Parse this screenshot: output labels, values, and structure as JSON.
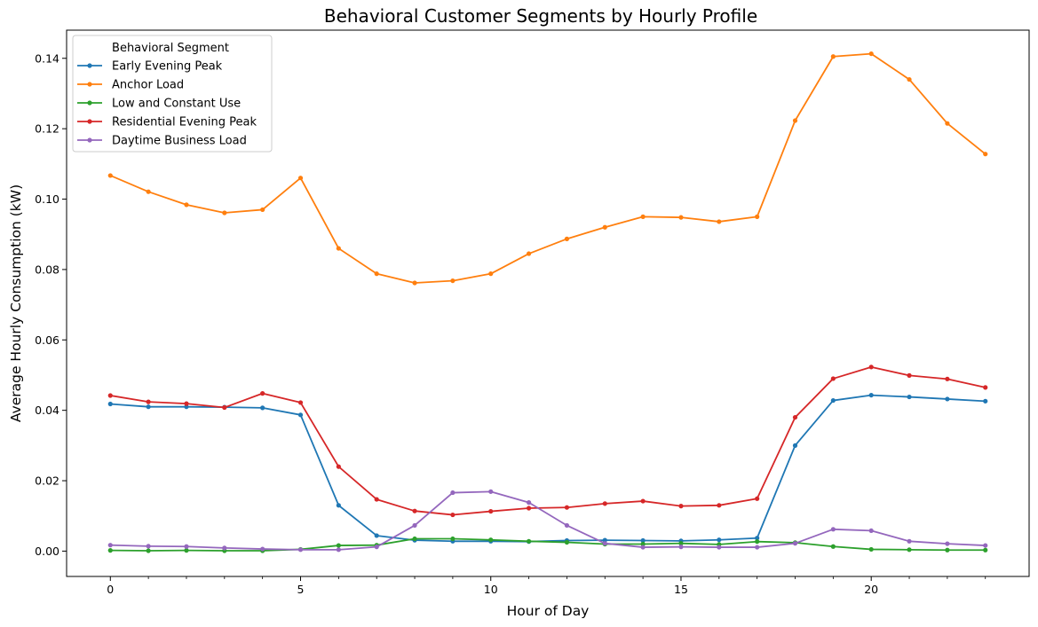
{
  "chart_data": {
    "type": "line",
    "title": "Behavioral Customer Segments by Hourly Profile",
    "xlabel": "Hour of Day",
    "ylabel": "Average Hourly Consumption (kW)",
    "x": [
      0,
      1,
      2,
      3,
      4,
      5,
      6,
      7,
      8,
      9,
      10,
      11,
      12,
      13,
      14,
      15,
      16,
      17,
      18,
      19,
      20,
      21,
      22,
      23
    ],
    "xlim": [
      -1.15,
      24.15
    ],
    "ylim": [
      -0.0072,
      0.148
    ],
    "xticks": [
      0,
      5,
      10,
      15,
      20
    ],
    "xtick_labels": [
      "0",
      "5",
      "10",
      "15",
      "20"
    ],
    "yticks": [
      0.0,
      0.02,
      0.04,
      0.06,
      0.08,
      0.1,
      0.12,
      0.14
    ],
    "ytick_labels": [
      "0.00",
      "0.02",
      "0.04",
      "0.06",
      "0.08",
      "0.10",
      "0.12",
      "0.14"
    ],
    "grid": false,
    "legend": {
      "title": "Behavioral Segment",
      "placement": "top-left"
    },
    "series": [
      {
        "name": "Early Evening Peak",
        "color": "#1f77b4",
        "values": [
          0.0418,
          0.041,
          0.041,
          0.0409,
          0.0407,
          0.0387,
          0.013,
          0.0044,
          0.0031,
          0.0028,
          0.0028,
          0.0027,
          0.003,
          0.0031,
          0.003,
          0.0029,
          0.0032,
          0.0037,
          0.03,
          0.0428,
          0.0443,
          0.0438,
          0.0432,
          0.0426
        ]
      },
      {
        "name": "Anchor Load",
        "color": "#ff7f0e",
        "values": [
          0.1067,
          0.1021,
          0.0984,
          0.0961,
          0.097,
          0.106,
          0.086,
          0.0788,
          0.0762,
          0.0768,
          0.0788,
          0.0845,
          0.0887,
          0.092,
          0.095,
          0.0948,
          0.0936,
          0.095,
          0.1223,
          0.1405,
          0.1413,
          0.134,
          0.1215,
          0.1128
        ]
      },
      {
        "name": "Low and Constant Use",
        "color": "#2ca02c",
        "values": [
          0.0002,
          0.0001,
          0.0002,
          0.0001,
          0.0001,
          0.0005,
          0.0016,
          0.0017,
          0.0035,
          0.0035,
          0.0032,
          0.0028,
          0.0025,
          0.002,
          0.002,
          0.0022,
          0.0019,
          0.0027,
          0.0024,
          0.0013,
          0.0005,
          0.0004,
          0.0003,
          0.0003
        ]
      },
      {
        "name": "Residential Evening Peak",
        "color": "#d62728",
        "values": [
          0.0442,
          0.0424,
          0.0419,
          0.0408,
          0.0448,
          0.0422,
          0.024,
          0.0147,
          0.0114,
          0.0103,
          0.0113,
          0.0122,
          0.0124,
          0.0135,
          0.0142,
          0.0128,
          0.013,
          0.0149,
          0.038,
          0.049,
          0.0523,
          0.0499,
          0.0489,
          0.0465
        ]
      },
      {
        "name": "Daytime Business Load",
        "color": "#9467bd",
        "values": [
          0.0017,
          0.0014,
          0.0013,
          0.0009,
          0.0006,
          0.0004,
          0.0004,
          0.0012,
          0.0073,
          0.0166,
          0.0169,
          0.0138,
          0.0073,
          0.0022,
          0.0011,
          0.0012,
          0.0011,
          0.0011,
          0.0022,
          0.0062,
          0.0058,
          0.0028,
          0.0021,
          0.0016
        ]
      }
    ]
  }
}
